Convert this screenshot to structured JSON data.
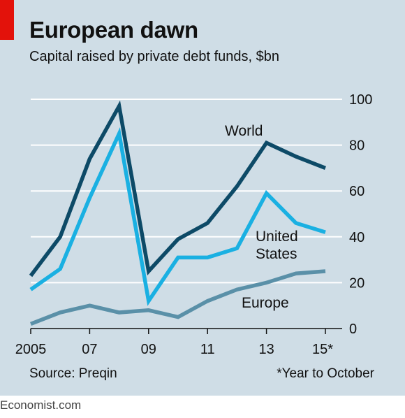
{
  "header": {
    "title": "European dawn",
    "subtitle": "Capital raised by private debt funds, $bn"
  },
  "footer": {
    "source": "Source: Preqin",
    "footnote": "*Year to October",
    "watermark": "Economist.com"
  },
  "colors": {
    "background": "#cfdde6",
    "brand_red": "#e3120b",
    "world": "#0d4a67",
    "united_states": "#1ab0e2",
    "europe": "#5a90a8",
    "gridline": "#ffffff"
  },
  "chart_data": {
    "type": "line",
    "title": "European dawn",
    "subtitle": "Capital raised by private debt funds, $bn",
    "x": [
      2005,
      2006,
      2007,
      2008,
      2009,
      2010,
      2011,
      2012,
      2013,
      2014,
      2015
    ],
    "xticks": [
      {
        "value": 2005,
        "label": "2005"
      },
      {
        "value": 2007,
        "label": "07"
      },
      {
        "value": 2009,
        "label": "09"
      },
      {
        "value": 2011,
        "label": "11"
      },
      {
        "value": 2013,
        "label": "13"
      },
      {
        "value": 2015,
        "label": "15*"
      }
    ],
    "xlim": [
      2005,
      2015
    ],
    "ylim": [
      0,
      100
    ],
    "yticks": [
      0,
      20,
      40,
      60,
      80,
      100
    ],
    "yaxis_position": "right",
    "grid": true,
    "series": [
      {
        "name": "World",
        "color_key": "world",
        "values": [
          23,
          40,
          74,
          97,
          25,
          39,
          46,
          62,
          81,
          75,
          70
        ]
      },
      {
        "name": "United States",
        "label_lines": [
          "United",
          "States"
        ],
        "color_key": "united_states",
        "values": [
          17,
          26,
          57,
          85,
          12,
          31,
          31,
          35,
          59,
          46,
          42
        ]
      },
      {
        "name": "Europe",
        "color_key": "europe",
        "values": [
          2,
          7,
          10,
          7,
          8,
          5,
          12,
          17,
          20,
          24,
          25
        ]
      }
    ]
  }
}
